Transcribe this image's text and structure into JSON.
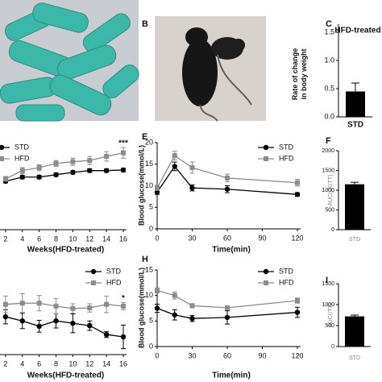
{
  "image_panels": [
    {
      "label": "B"
    }
  ],
  "chart_data": [
    {
      "type": "bar",
      "label": "C",
      "title": "HFD-treated",
      "y_label": "Rate of change\nin body weight",
      "categories": [
        "STD"
      ],
      "values": [
        0.45
      ],
      "errors": [
        0.15
      ],
      "color": "#000000",
      "ylim": [
        0,
        1.5
      ],
      "yticks": [
        {
          "value": 0,
          "label": "0.0"
        },
        {
          "value": 0.5,
          "label": "0.5"
        },
        {
          "value": 1,
          "label": "1.0"
        },
        {
          "value": 1.5,
          "label": "1.5"
        }
      ]
    },
    {
      "type": "line",
      "x_label": "Weeks(HFD-treated)",
      "x": [
        2,
        4,
        6,
        8,
        10,
        12,
        14,
        16
      ],
      "series": [
        {
          "name": "STD",
          "color": "#000000",
          "marker": "circle",
          "values": [
            23.2,
            23.9,
            23.9,
            24.3,
            24.7,
            25.0,
            25.0,
            25.1
          ],
          "errors": [
            0.3,
            0.3,
            0.3,
            0.3,
            0.3,
            0.3,
            0.3,
            0.3
          ]
        },
        {
          "name": "HFD",
          "color": "#8c8c8c",
          "marker": "square",
          "values": [
            23.6,
            25.0,
            25.5,
            26.2,
            26.5,
            26.7,
            27.4,
            28.0
          ],
          "errors": [
            0.4,
            0.5,
            0.5,
            0.5,
            0.6,
            0.7,
            0.8,
            0.9
          ]
        }
      ],
      "xlim": [
        0,
        16
      ],
      "ylim": [
        15,
        30
      ],
      "xticks": [
        2,
        4,
        6,
        8,
        10,
        12,
        14,
        16
      ],
      "annotations": [
        {
          "text": "***",
          "x": 16,
          "y": 29.6
        }
      ]
    },
    {
      "type": "line",
      "label": "E",
      "x_label": "Time(min)",
      "y_label": "Blood glucose(mmol/L)",
      "x": [
        0,
        15,
        30,
        60,
        120
      ],
      "series": [
        {
          "name": "STD",
          "color": "#000000",
          "marker": "circle",
          "values": [
            8.5,
            14.5,
            9.5,
            9.2,
            8.0
          ],
          "errors": [
            0.5,
            1.0,
            0.7,
            0.8,
            0.4
          ]
        },
        {
          "name": "HFD",
          "color": "#8c8c8c",
          "marker": "square",
          "values": [
            9.5,
            17.0,
            14.2,
            11.8,
            10.7
          ],
          "errors": [
            0.6,
            1.0,
            1.3,
            0.9,
            0.8
          ]
        }
      ],
      "xlim": [
        0,
        120
      ],
      "ylim": [
        0,
        20
      ],
      "xticks": [
        0,
        30,
        60,
        90,
        120
      ],
      "yticks": [
        0,
        5,
        10,
        15,
        20
      ]
    },
    {
      "type": "bar",
      "label": "F",
      "y_label": "AUC(OGTT)",
      "categories": [
        "STD"
      ],
      "values": [
        1150
      ],
      "errors": [
        50
      ],
      "color": "#000000",
      "ylim": [
        0,
        2000
      ],
      "yticks": [
        0,
        500,
        1000,
        1500,
        2000
      ]
    },
    {
      "type": "line",
      "x_label": "Weeks(HFD-treated)",
      "x": [
        2,
        4,
        6,
        8,
        10,
        12,
        14,
        16
      ],
      "series": [
        {
          "name": "STD",
          "color": "#000000",
          "marker": "circle",
          "values": [
            6.4,
            5.7,
            4.8,
            5.7,
            5.3,
            4.9,
            3.4,
            3.0
          ],
          "errors": [
            1.2,
            1.3,
            1.0,
            1.2,
            1.6,
            0.8,
            0.5,
            2.0
          ]
        },
        {
          "name": "HFD",
          "color": "#8c8c8c",
          "marker": "square",
          "values": [
            8.5,
            8.7,
            8.7,
            8.2,
            7.8,
            7.9,
            8.5,
            8.2
          ],
          "errors": [
            1.4,
            1.6,
            1.3,
            1.3,
            0.8,
            0.7,
            1.4,
            0.6
          ]
        }
      ],
      "xlim": [
        0,
        16
      ],
      "ylim": [
        0,
        15
      ],
      "xticks": [
        2,
        4,
        6,
        8,
        10,
        12,
        14,
        16
      ],
      "annotations": [
        {
          "text": "*",
          "x": 16,
          "y": 9.5
        }
      ]
    },
    {
      "type": "line",
      "label": "H",
      "x_label": "Time(min)",
      "y_label": "Blood glucose(mmol/L)",
      "x": [
        0,
        15,
        30,
        60,
        120
      ],
      "series": [
        {
          "name": "STD",
          "color": "#000000",
          "marker": "circle",
          "values": [
            7.5,
            6.2,
            5.5,
            5.7,
            6.7
          ],
          "errors": [
            0.8,
            1.0,
            0.6,
            1.3,
            1.0
          ]
        },
        {
          "name": "HFD",
          "color": "#8c8c8c",
          "marker": "square",
          "values": [
            11.0,
            10.0,
            8.0,
            7.6,
            9.0
          ],
          "errors": [
            0.5,
            0.7,
            0.4,
            0.3,
            0.5
          ]
        }
      ],
      "xlim": [
        0,
        120
      ],
      "ylim": [
        0,
        15
      ],
      "xticks": [
        0,
        30,
        60,
        90,
        120
      ],
      "yticks": [
        0,
        5,
        10,
        15
      ]
    },
    {
      "type": "bar",
      "label": "I",
      "y_label": "AUC(ITT)",
      "categories": [
        "STD"
      ],
      "values": [
        720
      ],
      "errors": [
        30
      ],
      "color": "#000000",
      "ylim": [
        0,
        1500
      ],
      "yticks": [
        0,
        500,
        1000,
        1500
      ]
    }
  ]
}
